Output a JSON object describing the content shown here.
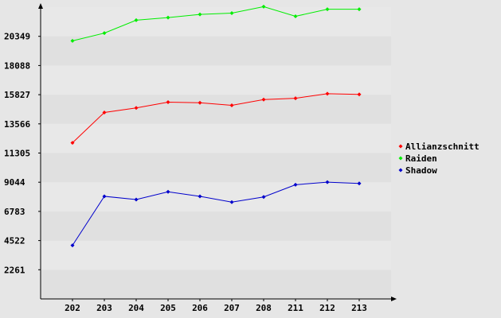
{
  "chart_data": {
    "type": "line",
    "categories": [
      "202",
      "203",
      "204",
      "205",
      "206",
      "207",
      "208",
      "211",
      "212",
      "213"
    ],
    "y_ticks": [
      "2261",
      "4522",
      "6783",
      "9044",
      "11305",
      "13566",
      "15827",
      "18088",
      "20349"
    ],
    "ylim": [
      0,
      22610
    ],
    "grid": "alternating horizontal bands",
    "legend": "right",
    "series": [
      {
        "name": "Allianzschnitt",
        "color": "#ff0000",
        "values": [
          12100,
          14450,
          14800,
          15250,
          15200,
          15000,
          15450,
          15550,
          15900,
          15850
        ]
      },
      {
        "name": "Raiden",
        "color": "#00ee00",
        "values": [
          20000,
          20600,
          21600,
          21800,
          22050,
          22150,
          22650,
          21900,
          22450,
          22450
        ]
      },
      {
        "name": "Shadow",
        "color": "#0000cc",
        "values": [
          4150,
          7950,
          7700,
          8300,
          7950,
          7500,
          7900,
          8850,
          9050,
          8950
        ]
      }
    ]
  }
}
